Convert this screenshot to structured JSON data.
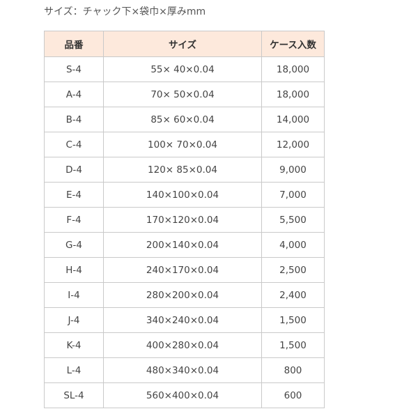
{
  "caption": "サイズ：チャック下×袋巾×厚みmm",
  "table": {
    "headers": [
      "品番",
      "サイズ",
      "ケース入数"
    ],
    "rows": [
      [
        "S-4",
        "55× 40×0.04",
        "18,000"
      ],
      [
        "A-4",
        "70× 50×0.04",
        "18,000"
      ],
      [
        "B-4",
        "85× 60×0.04",
        "14,000"
      ],
      [
        "C-4",
        "100× 70×0.04",
        "12,000"
      ],
      [
        "D-4",
        "120× 85×0.04",
        "9,000"
      ],
      [
        "E-4",
        "140×100×0.04",
        "7,000"
      ],
      [
        "F-4",
        "170×120×0.04",
        "5,500"
      ],
      [
        "G-4",
        "200×140×0.04",
        "4,000"
      ],
      [
        "H-4",
        "240×170×0.04",
        "2,500"
      ],
      [
        "I-4",
        "280×200×0.04",
        "2,400"
      ],
      [
        "J-4",
        "340×240×0.04",
        "1,500"
      ],
      [
        "K-4",
        "400×280×0.04",
        "1,500"
      ],
      [
        "L-4",
        "480×340×0.04",
        "800"
      ],
      [
        "SL-4",
        "560×400×0.04",
        "600"
      ]
    ]
  },
  "colors": {
    "header_bg": "#fde9dc",
    "border": "#c9c9c9",
    "text": "#444444"
  }
}
